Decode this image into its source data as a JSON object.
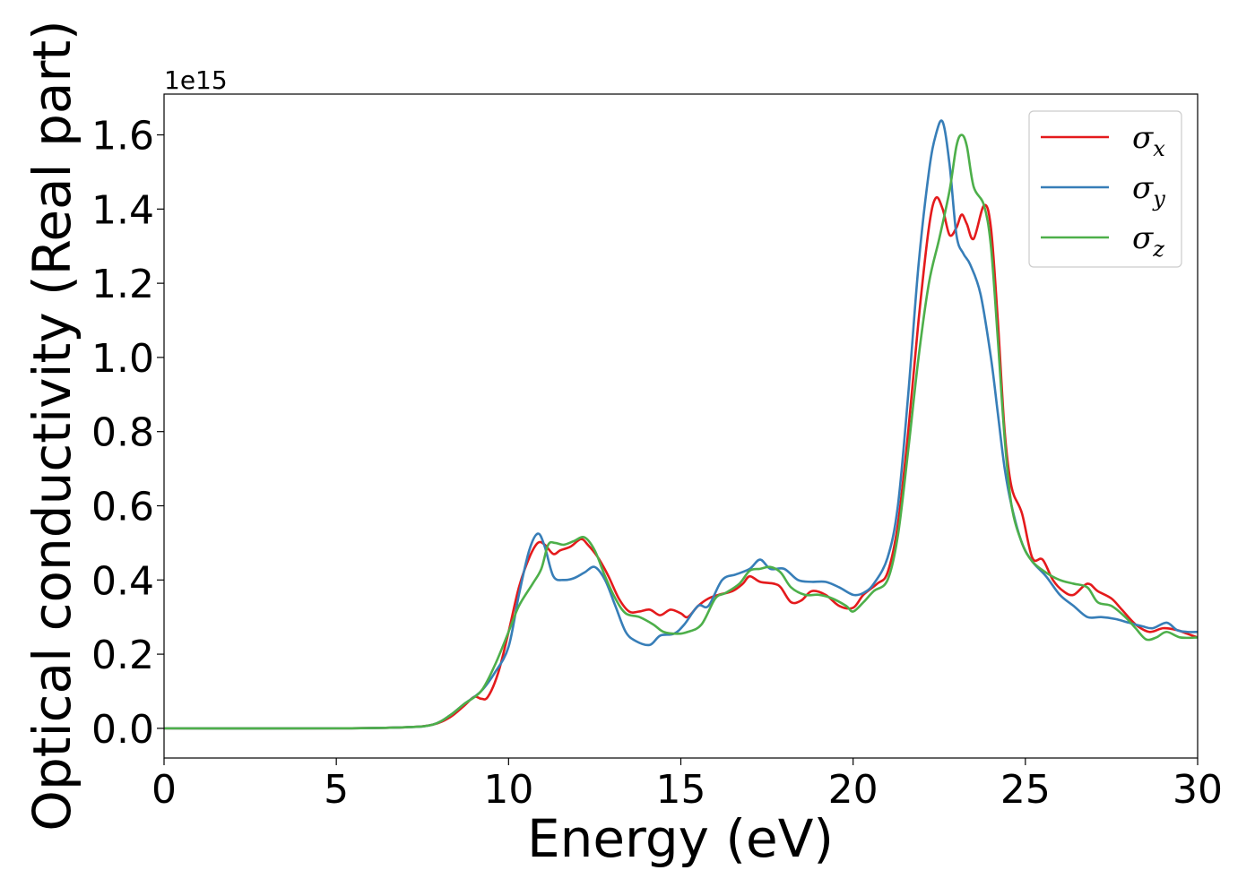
{
  "chart_data": {
    "type": "line",
    "title": "",
    "xlabel": "Energy (eV)",
    "ylabel": "Optical conductivity (Real part)",
    "y_offset_label": "1e15",
    "xlim": [
      0,
      30
    ],
    "ylim": [
      -0.08,
      1.71
    ],
    "xticks": [
      0,
      5,
      10,
      15,
      20,
      25,
      30
    ],
    "yticks": [
      0.0,
      0.2,
      0.4,
      0.6,
      0.8,
      1.0,
      1.2,
      1.4,
      1.6
    ],
    "ytick_labels": [
      "0.0",
      "0.2",
      "0.4",
      "0.6",
      "0.8",
      "1.0",
      "1.2",
      "1.4",
      "1.6"
    ],
    "grid": false,
    "legend_position": "top-right",
    "series": [
      {
        "name": "σx",
        "symbol": "σ",
        "subscript": "x",
        "color": "#e41a1c",
        "points": [
          [
            0,
            0
          ],
          [
            5,
            0
          ],
          [
            7,
            0.003
          ],
          [
            7.8,
            0.01
          ],
          [
            8.3,
            0.03
          ],
          [
            8.7,
            0.06
          ],
          [
            9.0,
            0.085
          ],
          [
            9.2,
            0.08
          ],
          [
            9.4,
            0.085
          ],
          [
            9.7,
            0.15
          ],
          [
            10.0,
            0.26
          ],
          [
            10.3,
            0.38
          ],
          [
            10.6,
            0.46
          ],
          [
            10.85,
            0.5
          ],
          [
            11.05,
            0.495
          ],
          [
            11.3,
            0.47
          ],
          [
            11.5,
            0.48
          ],
          [
            11.8,
            0.49
          ],
          [
            12.1,
            0.51
          ],
          [
            12.3,
            0.495
          ],
          [
            12.6,
            0.46
          ],
          [
            12.9,
            0.41
          ],
          [
            13.2,
            0.35
          ],
          [
            13.5,
            0.315
          ],
          [
            13.8,
            0.315
          ],
          [
            14.1,
            0.32
          ],
          [
            14.4,
            0.305
          ],
          [
            14.7,
            0.32
          ],
          [
            15.0,
            0.31
          ],
          [
            15.2,
            0.3
          ],
          [
            15.5,
            0.33
          ],
          [
            15.8,
            0.35
          ],
          [
            16.1,
            0.36
          ],
          [
            16.5,
            0.37
          ],
          [
            16.8,
            0.39
          ],
          [
            17.0,
            0.41
          ],
          [
            17.3,
            0.395
          ],
          [
            17.7,
            0.39
          ],
          [
            17.9,
            0.38
          ],
          [
            18.2,
            0.34
          ],
          [
            18.5,
            0.345
          ],
          [
            18.8,
            0.37
          ],
          [
            19.2,
            0.36
          ],
          [
            19.6,
            0.33
          ],
          [
            20.0,
            0.325
          ],
          [
            20.3,
            0.36
          ],
          [
            20.7,
            0.39
          ],
          [
            21.0,
            0.42
          ],
          [
            21.3,
            0.55
          ],
          [
            21.6,
            0.8
          ],
          [
            21.9,
            1.1
          ],
          [
            22.2,
            1.35
          ],
          [
            22.4,
            1.43
          ],
          [
            22.6,
            1.4
          ],
          [
            22.8,
            1.33
          ],
          [
            23.0,
            1.35
          ],
          [
            23.15,
            1.385
          ],
          [
            23.3,
            1.36
          ],
          [
            23.5,
            1.32
          ],
          [
            23.8,
            1.41
          ],
          [
            24.0,
            1.35
          ],
          [
            24.2,
            1.1
          ],
          [
            24.4,
            0.8
          ],
          [
            24.6,
            0.65
          ],
          [
            24.9,
            0.58
          ],
          [
            25.2,
            0.46
          ],
          [
            25.5,
            0.455
          ],
          [
            25.8,
            0.4
          ],
          [
            26.1,
            0.37
          ],
          [
            26.4,
            0.36
          ],
          [
            26.8,
            0.39
          ],
          [
            27.1,
            0.37
          ],
          [
            27.5,
            0.35
          ],
          [
            27.8,
            0.32
          ],
          [
            28.2,
            0.28
          ],
          [
            28.6,
            0.26
          ],
          [
            29.0,
            0.27
          ],
          [
            29.4,
            0.265
          ],
          [
            29.7,
            0.255
          ],
          [
            30,
            0.245
          ]
        ]
      },
      {
        "name": "σy",
        "symbol": "σ",
        "subscript": "y",
        "color": "#377eb8",
        "points": [
          [
            0,
            0
          ],
          [
            5,
            0
          ],
          [
            7,
            0.003
          ],
          [
            7.8,
            0.01
          ],
          [
            8.3,
            0.035
          ],
          [
            8.7,
            0.065
          ],
          [
            9.2,
            0.1
          ],
          [
            9.6,
            0.15
          ],
          [
            10.0,
            0.22
          ],
          [
            10.3,
            0.36
          ],
          [
            10.6,
            0.48
          ],
          [
            10.85,
            0.525
          ],
          [
            11.05,
            0.49
          ],
          [
            11.3,
            0.41
          ],
          [
            11.6,
            0.4
          ],
          [
            11.9,
            0.405
          ],
          [
            12.2,
            0.42
          ],
          [
            12.5,
            0.435
          ],
          [
            12.8,
            0.4
          ],
          [
            13.1,
            0.33
          ],
          [
            13.4,
            0.26
          ],
          [
            13.7,
            0.235
          ],
          [
            14.1,
            0.225
          ],
          [
            14.4,
            0.25
          ],
          [
            14.8,
            0.255
          ],
          [
            15.1,
            0.28
          ],
          [
            15.5,
            0.33
          ],
          [
            15.8,
            0.33
          ],
          [
            16.2,
            0.4
          ],
          [
            16.6,
            0.415
          ],
          [
            17.0,
            0.43
          ],
          [
            17.3,
            0.455
          ],
          [
            17.6,
            0.43
          ],
          [
            18.0,
            0.43
          ],
          [
            18.4,
            0.4
          ],
          [
            18.8,
            0.395
          ],
          [
            19.2,
            0.395
          ],
          [
            19.6,
            0.38
          ],
          [
            20.0,
            0.36
          ],
          [
            20.3,
            0.365
          ],
          [
            20.6,
            0.39
          ],
          [
            21.0,
            0.46
          ],
          [
            21.3,
            0.6
          ],
          [
            21.6,
            0.9
          ],
          [
            21.9,
            1.25
          ],
          [
            22.2,
            1.5
          ],
          [
            22.4,
            1.6
          ],
          [
            22.6,
            1.635
          ],
          [
            22.8,
            1.52
          ],
          [
            23.0,
            1.33
          ],
          [
            23.2,
            1.28
          ],
          [
            23.4,
            1.25
          ],
          [
            23.7,
            1.17
          ],
          [
            24.0,
            1.0
          ],
          [
            24.2,
            0.85
          ],
          [
            24.4,
            0.7
          ],
          [
            24.6,
            0.6
          ],
          [
            24.9,
            0.5
          ],
          [
            25.2,
            0.45
          ],
          [
            25.6,
            0.41
          ],
          [
            26.0,
            0.36
          ],
          [
            26.4,
            0.33
          ],
          [
            26.8,
            0.3
          ],
          [
            27.2,
            0.3
          ],
          [
            27.6,
            0.295
          ],
          [
            28.0,
            0.285
          ],
          [
            28.4,
            0.275
          ],
          [
            28.7,
            0.27
          ],
          [
            29.1,
            0.285
          ],
          [
            29.4,
            0.265
          ],
          [
            29.7,
            0.26
          ],
          [
            30,
            0.26
          ]
        ]
      },
      {
        "name": "σz",
        "symbol": "σ",
        "subscript": "z",
        "color": "#4daf4a",
        "points": [
          [
            0,
            0
          ],
          [
            5,
            0
          ],
          [
            7,
            0.003
          ],
          [
            7.8,
            0.01
          ],
          [
            8.3,
            0.035
          ],
          [
            8.7,
            0.065
          ],
          [
            9.2,
            0.1
          ],
          [
            9.6,
            0.17
          ],
          [
            10.0,
            0.26
          ],
          [
            10.3,
            0.33
          ],
          [
            10.7,
            0.39
          ],
          [
            10.95,
            0.43
          ],
          [
            11.15,
            0.495
          ],
          [
            11.35,
            0.5
          ],
          [
            11.6,
            0.495
          ],
          [
            11.9,
            0.505
          ],
          [
            12.2,
            0.515
          ],
          [
            12.5,
            0.48
          ],
          [
            12.8,
            0.41
          ],
          [
            13.1,
            0.35
          ],
          [
            13.4,
            0.31
          ],
          [
            13.8,
            0.3
          ],
          [
            14.2,
            0.28
          ],
          [
            14.5,
            0.26
          ],
          [
            14.9,
            0.255
          ],
          [
            15.2,
            0.26
          ],
          [
            15.6,
            0.28
          ],
          [
            16.0,
            0.35
          ],
          [
            16.3,
            0.365
          ],
          [
            16.7,
            0.39
          ],
          [
            17.0,
            0.425
          ],
          [
            17.3,
            0.43
          ],
          [
            17.6,
            0.435
          ],
          [
            17.9,
            0.42
          ],
          [
            18.2,
            0.38
          ],
          [
            18.6,
            0.36
          ],
          [
            19.0,
            0.36
          ],
          [
            19.4,
            0.35
          ],
          [
            19.8,
            0.33
          ],
          [
            20.0,
            0.315
          ],
          [
            20.3,
            0.34
          ],
          [
            20.6,
            0.37
          ],
          [
            21.0,
            0.4
          ],
          [
            21.3,
            0.52
          ],
          [
            21.6,
            0.75
          ],
          [
            21.9,
            1.0
          ],
          [
            22.2,
            1.2
          ],
          [
            22.5,
            1.32
          ],
          [
            22.8,
            1.45
          ],
          [
            23.0,
            1.57
          ],
          [
            23.15,
            1.6
          ],
          [
            23.3,
            1.57
          ],
          [
            23.5,
            1.46
          ],
          [
            23.8,
            1.41
          ],
          [
            24.0,
            1.3
          ],
          [
            24.2,
            1.05
          ],
          [
            24.4,
            0.78
          ],
          [
            24.6,
            0.6
          ],
          [
            24.9,
            0.5
          ],
          [
            25.2,
            0.45
          ],
          [
            25.6,
            0.42
          ],
          [
            26.0,
            0.4
          ],
          [
            26.4,
            0.39
          ],
          [
            26.8,
            0.38
          ],
          [
            27.1,
            0.34
          ],
          [
            27.5,
            0.33
          ],
          [
            27.9,
            0.3
          ],
          [
            28.2,
            0.27
          ],
          [
            28.5,
            0.24
          ],
          [
            28.8,
            0.245
          ],
          [
            29.1,
            0.26
          ],
          [
            29.5,
            0.245
          ],
          [
            30,
            0.245
          ]
        ]
      }
    ]
  }
}
